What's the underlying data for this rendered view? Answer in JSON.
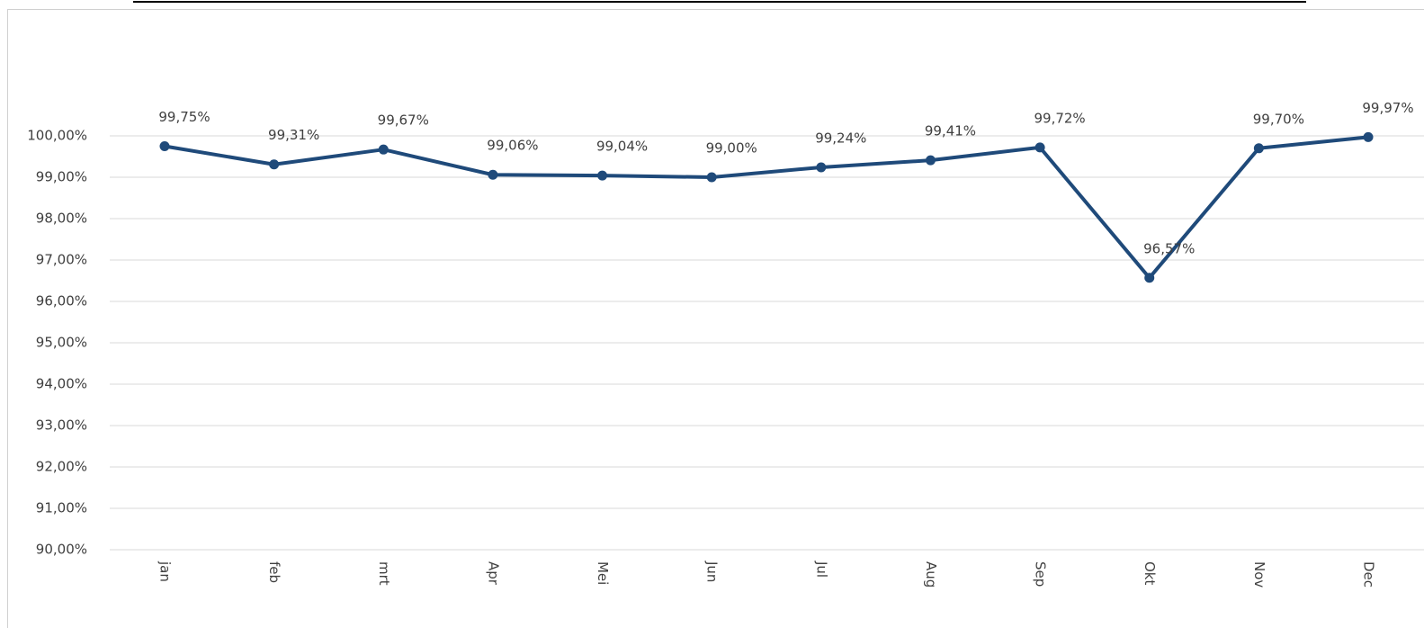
{
  "chart_data": {
    "type": "line",
    "categories": [
      "jan",
      "feb",
      "mrt",
      "Apr",
      "Mei",
      "Jun",
      "Jul",
      "Aug",
      "Sep",
      "Okt",
      "Nov",
      "Dec"
    ],
    "series": [
      {
        "color": "#1f4a7a",
        "values": [
          99.75,
          99.31,
          99.67,
          99.06,
          99.04,
          99.0,
          99.24,
          99.41,
          99.72,
          96.57,
          99.7,
          99.97
        ],
        "value_labels": [
          "99,75%",
          "99,31%",
          "99,67%",
          "99,06%",
          "99,04%",
          "99,00%",
          "99,24%",
          "99,41%",
          "99,72%",
          "96,57%",
          "99,70%",
          "99,97%"
        ]
      }
    ],
    "ylim": [
      90,
      100
    ],
    "yticks": [
      {
        "value": 90,
        "label": "90,00%"
      },
      {
        "value": 91,
        "label": "91,00%"
      },
      {
        "value": 92,
        "label": "92,00%"
      },
      {
        "value": 93,
        "label": "93,00%"
      },
      {
        "value": 94,
        "label": "94,00%"
      },
      {
        "value": 95,
        "label": "95,00%"
      },
      {
        "value": 96,
        "label": "96,00%"
      },
      {
        "value": 97,
        "label": "97,00%"
      },
      {
        "value": 98,
        "label": "98,00%"
      },
      {
        "value": 99,
        "label": "99,00%"
      },
      {
        "value": 100,
        "label": "100,00%"
      }
    ],
    "grid": true
  }
}
